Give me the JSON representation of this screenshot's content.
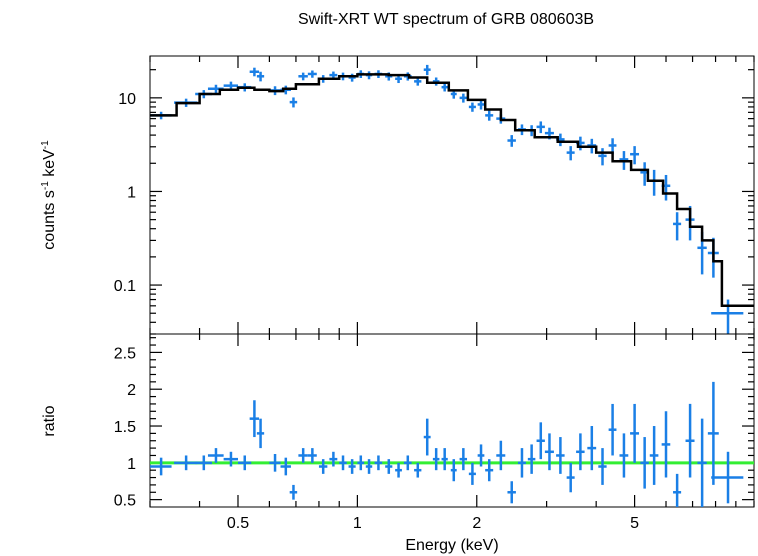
{
  "chart_data": [
    {
      "type": "scatter",
      "title": "Swift-XRT WT spectrum of GRB 080603B",
      "xlabel": "Energy (keV)",
      "ylabel_parts": [
        "counts s",
        "-1",
        " keV",
        "-1"
      ],
      "xscale": "log",
      "yscale": "log",
      "xlim": [
        0.3,
        10
      ],
      "ylim": [
        0.03,
        28
      ],
      "yticks": [
        {
          "v": 0.1,
          "label": "0.1"
        },
        {
          "v": 1,
          "label": "1"
        },
        {
          "v": 10,
          "label": "10"
        }
      ],
      "grid": false,
      "colors": {
        "data": "#1a7fe6",
        "model": "#000000"
      },
      "series": [
        {
          "kind": "data",
          "points": [
            [
              0.32,
              6.5,
              0.02,
              0.6
            ],
            [
              0.37,
              8.9,
              0.025,
              0.9
            ],
            [
              0.41,
              11,
              0.02,
              1.1
            ],
            [
              0.44,
              12.5,
              0.02,
              1.3
            ],
            [
              0.48,
              13.5,
              0.02,
              1.4
            ],
            [
              0.52,
              13,
              0.02,
              1.3
            ],
            [
              0.55,
              19,
              0.015,
              2
            ],
            [
              0.57,
              17,
              0.012,
              2
            ],
            [
              0.62,
              12,
              0.02,
              1.3
            ],
            [
              0.66,
              12.2,
              0.02,
              1.3
            ],
            [
              0.69,
              9,
              0.015,
              1.1
            ],
            [
              0.73,
              17,
              0.02,
              1.6
            ],
            [
              0.77,
              18,
              0.02,
              1.6
            ],
            [
              0.82,
              16,
              0.02,
              1.5
            ],
            [
              0.87,
              17.5,
              0.02,
              1.6
            ],
            [
              0.92,
              17,
              0.02,
              1.6
            ],
            [
              0.97,
              16.5,
              0.02,
              1.6
            ],
            [
              1.02,
              18,
              0.02,
              1.7
            ],
            [
              1.07,
              17.5,
              0.02,
              1.7
            ],
            [
              1.13,
              18,
              0.025,
              1.7
            ],
            [
              1.2,
              17,
              0.025,
              1.7
            ],
            [
              1.27,
              16,
              0.025,
              1.6
            ],
            [
              1.34,
              17,
              0.03,
              1.7
            ],
            [
              1.42,
              15,
              0.03,
              1.5
            ],
            [
              1.5,
              20,
              0.03,
              2.5
            ],
            [
              1.58,
              15,
              0.03,
              1.5
            ],
            [
              1.66,
              13,
              0.03,
              1.3
            ],
            [
              1.75,
              11,
              0.03,
              1.2
            ],
            [
              1.85,
              10,
              0.04,
              1.1
            ],
            [
              1.95,
              8,
              0.04,
              0.9
            ],
            [
              2.05,
              8.5,
              0.04,
              1
            ],
            [
              2.15,
              6.5,
              0.05,
              0.8
            ],
            [
              2.3,
              6,
              0.06,
              0.7
            ],
            [
              2.45,
              3.5,
              0.06,
              0.5
            ],
            [
              2.6,
              4.6,
              0.06,
              0.6
            ],
            [
              2.75,
              4.5,
              0.06,
              0.6
            ],
            [
              2.9,
              4.9,
              0.07,
              0.7
            ],
            [
              3.05,
              4.2,
              0.08,
              0.6
            ],
            [
              3.25,
              3.6,
              0.08,
              0.55
            ],
            [
              3.45,
              2.6,
              0.08,
              0.45
            ],
            [
              3.65,
              3.3,
              0.09,
              0.55
            ],
            [
              3.9,
              3.1,
              0.1,
              0.55
            ],
            [
              4.15,
              2.4,
              0.1,
              0.5
            ],
            [
              4.4,
              3.1,
              0.1,
              0.6
            ],
            [
              4.7,
              2.2,
              0.12,
              0.5
            ],
            [
              5,
              2.5,
              0.13,
              0.55
            ],
            [
              5.3,
              1.6,
              0.13,
              0.45
            ],
            [
              5.6,
              1.3,
              0.14,
              0.4
            ],
            [
              6,
              1.15,
              0.15,
              0.35
            ],
            [
              6.4,
              0.45,
              0.15,
              0.15
            ],
            [
              6.9,
              0.5,
              0.18,
              0.2
            ],
            [
              7.4,
              0.25,
              0.2,
              0.12
            ],
            [
              7.9,
              0.22,
              0.25,
              0.1
            ],
            [
              8.6,
              0.05,
              0.8,
              0.02
            ]
          ]
        },
        {
          "kind": "model",
          "steps": [
            [
              0.3,
              6.5
            ],
            [
              0.35,
              6.5
            ],
            [
              0.35,
              8.8
            ],
            [
              0.4,
              8.8
            ],
            [
              0.4,
              11
            ],
            [
              0.45,
              11
            ],
            [
              0.45,
              12.2
            ],
            [
              0.5,
              12.2
            ],
            [
              0.5,
              12.8
            ],
            [
              0.55,
              12.8
            ],
            [
              0.55,
              12.2
            ],
            [
              0.6,
              12.2
            ],
            [
              0.6,
              11.8
            ],
            [
              0.65,
              11.8
            ],
            [
              0.65,
              12.5
            ],
            [
              0.7,
              12.5
            ],
            [
              0.7,
              14
            ],
            [
              0.8,
              14
            ],
            [
              0.8,
              16
            ],
            [
              0.9,
              16
            ],
            [
              0.9,
              17
            ],
            [
              1,
              17
            ],
            [
              1,
              17.8
            ],
            [
              1.2,
              17.8
            ],
            [
              1.2,
              17.5
            ],
            [
              1.35,
              17.5
            ],
            [
              1.35,
              16.5
            ],
            [
              1.5,
              16.5
            ],
            [
              1.5,
              14.5
            ],
            [
              1.7,
              14.5
            ],
            [
              1.7,
              12
            ],
            [
              1.9,
              12
            ],
            [
              1.9,
              9.5
            ],
            [
              2.1,
              9.5
            ],
            [
              2.1,
              7.5
            ],
            [
              2.3,
              7.5
            ],
            [
              2.3,
              5.8
            ],
            [
              2.5,
              5.8
            ],
            [
              2.5,
              4.5
            ],
            [
              2.8,
              4.5
            ],
            [
              2.8,
              3.8
            ],
            [
              3.2,
              3.8
            ],
            [
              3.2,
              3.4
            ],
            [
              3.6,
              3.4
            ],
            [
              3.6,
              3.0
            ],
            [
              4,
              3.0
            ],
            [
              4,
              2.6
            ],
            [
              4.4,
              2.6
            ],
            [
              4.4,
              2.1
            ],
            [
              4.9,
              2.1
            ],
            [
              4.9,
              1.7
            ],
            [
              5.4,
              1.7
            ],
            [
              5.4,
              1.3
            ],
            [
              5.9,
              1.3
            ],
            [
              5.9,
              0.95
            ],
            [
              6.4,
              0.95
            ],
            [
              6.4,
              0.65
            ],
            [
              6.9,
              0.65
            ],
            [
              6.9,
              0.42
            ],
            [
              7.4,
              0.42
            ],
            [
              7.4,
              0.3
            ],
            [
              7.9,
              0.3
            ],
            [
              7.9,
              0.18
            ],
            [
              8.3,
              0.18
            ],
            [
              8.3,
              0.06
            ],
            [
              10,
              0.06
            ]
          ]
        }
      ]
    },
    {
      "type": "scatter",
      "xlabel": "Energy (keV)",
      "ylabel": "ratio",
      "xscale": "log",
      "xlim": [
        0.3,
        10
      ],
      "ylim": [
        0.4,
        2.75
      ],
      "xticks": [
        {
          "v": 0.5,
          "label": "0.5"
        },
        {
          "v": 1,
          "label": "1"
        },
        {
          "v": 2,
          "label": "2"
        },
        {
          "v": 5,
          "label": "5"
        }
      ],
      "yticks": [
        {
          "v": 0.5,
          "label": "0.5"
        },
        {
          "v": 1,
          "label": "1"
        },
        {
          "v": 1.5,
          "label": "1.5"
        },
        {
          "v": 2,
          "label": "2"
        },
        {
          "v": 2.5,
          "label": "2.5"
        }
      ],
      "grid": false,
      "colors": {
        "data": "#1a7fe6",
        "reference": "#33ee33"
      },
      "reference_line": 1,
      "series": [
        {
          "kind": "data",
          "points": [
            [
              0.32,
              0.95,
              0.02,
              0.12
            ],
            [
              0.37,
              1.0,
              0.025,
              0.1
            ],
            [
              0.41,
              1.0,
              0.02,
              0.1
            ],
            [
              0.44,
              1.1,
              0.02,
              0.1
            ],
            [
              0.48,
              1.05,
              0.02,
              0.1
            ],
            [
              0.52,
              1.0,
              0.02,
              0.1
            ],
            [
              0.55,
              1.6,
              0.015,
              0.25
            ],
            [
              0.57,
              1.4,
              0.012,
              0.2
            ],
            [
              0.62,
              1.0,
              0.02,
              0.12
            ],
            [
              0.66,
              0.95,
              0.02,
              0.12
            ],
            [
              0.69,
              0.6,
              0.015,
              0.1
            ],
            [
              0.73,
              1.1,
              0.02,
              0.1
            ],
            [
              0.77,
              1.1,
              0.02,
              0.1
            ],
            [
              0.82,
              0.95,
              0.02,
              0.1
            ],
            [
              0.87,
              1.05,
              0.02,
              0.1
            ],
            [
              0.92,
              1.0,
              0.02,
              0.1
            ],
            [
              0.97,
              0.95,
              0.02,
              0.1
            ],
            [
              1.02,
              1.0,
              0.02,
              0.1
            ],
            [
              1.07,
              0.95,
              0.02,
              0.1
            ],
            [
              1.13,
              1.0,
              0.025,
              0.1
            ],
            [
              1.2,
              0.95,
              0.025,
              0.1
            ],
            [
              1.27,
              0.9,
              0.025,
              0.1
            ],
            [
              1.34,
              1.0,
              0.03,
              0.1
            ],
            [
              1.42,
              0.9,
              0.03,
              0.1
            ],
            [
              1.5,
              1.35,
              0.03,
              0.25
            ],
            [
              1.58,
              1.05,
              0.03,
              0.15
            ],
            [
              1.66,
              1.05,
              0.03,
              0.15
            ],
            [
              1.75,
              0.9,
              0.03,
              0.15
            ],
            [
              1.85,
              1.05,
              0.04,
              0.15
            ],
            [
              1.95,
              0.85,
              0.04,
              0.15
            ],
            [
              2.05,
              1.1,
              0.04,
              0.15
            ],
            [
              2.15,
              0.9,
              0.05,
              0.15
            ],
            [
              2.3,
              1.1,
              0.06,
              0.2
            ],
            [
              2.45,
              0.6,
              0.06,
              0.15
            ],
            [
              2.6,
              1.0,
              0.06,
              0.2
            ],
            [
              2.75,
              1.05,
              0.06,
              0.2
            ],
            [
              2.9,
              1.3,
              0.07,
              0.25
            ],
            [
              3.05,
              1.15,
              0.08,
              0.25
            ],
            [
              3.25,
              1.1,
              0.08,
              0.25
            ],
            [
              3.45,
              0.8,
              0.08,
              0.2
            ],
            [
              3.65,
              1.15,
              0.09,
              0.25
            ],
            [
              3.9,
              1.2,
              0.1,
              0.3
            ],
            [
              4.15,
              0.95,
              0.1,
              0.25
            ],
            [
              4.4,
              1.45,
              0.1,
              0.35
            ],
            [
              4.7,
              1.1,
              0.12,
              0.3
            ],
            [
              5,
              1.4,
              0.13,
              0.4
            ],
            [
              5.3,
              1.0,
              0.13,
              0.35
            ],
            [
              5.6,
              1.1,
              0.14,
              0.4
            ],
            [
              6,
              1.25,
              0.15,
              0.45
            ],
            [
              6.4,
              0.6,
              0.15,
              0.25
            ],
            [
              6.9,
              1.3,
              0.18,
              0.5
            ],
            [
              7.4,
              1.0,
              0.2,
              0.6
            ],
            [
              7.9,
              1.4,
              0.25,
              0.7
            ],
            [
              8.6,
              0.8,
              0.8,
              0.35
            ]
          ]
        }
      ]
    }
  ]
}
